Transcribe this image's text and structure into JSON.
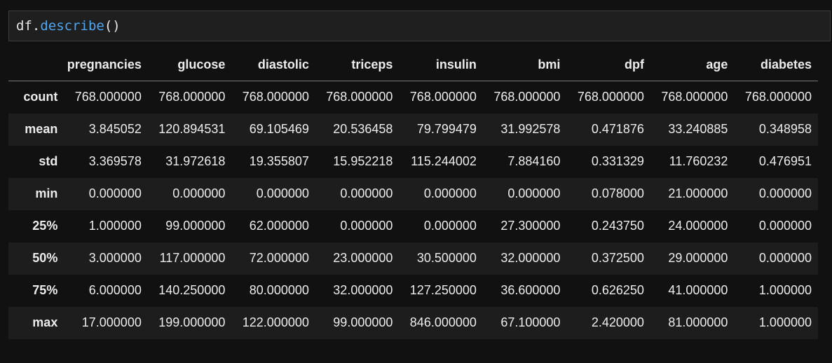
{
  "cell": {
    "code": {
      "object": "df",
      "dot": ".",
      "method": "describe",
      "parens": "()"
    }
  },
  "output": {
    "columns": [
      "pregnancies",
      "glucose",
      "diastolic",
      "triceps",
      "insulin",
      "bmi",
      "dpf",
      "age",
      "diabetes"
    ],
    "rows": [
      {
        "index": "count",
        "values": [
          "768.000000",
          "768.000000",
          "768.000000",
          "768.000000",
          "768.000000",
          "768.000000",
          "768.000000",
          "768.000000",
          "768.000000"
        ]
      },
      {
        "index": "mean",
        "values": [
          "3.845052",
          "120.894531",
          "69.105469",
          "20.536458",
          "79.799479",
          "31.992578",
          "0.471876",
          "33.240885",
          "0.348958"
        ]
      },
      {
        "index": "std",
        "values": [
          "3.369578",
          "31.972618",
          "19.355807",
          "15.952218",
          "115.244002",
          "7.884160",
          "0.331329",
          "11.760232",
          "0.476951"
        ]
      },
      {
        "index": "min",
        "values": [
          "0.000000",
          "0.000000",
          "0.000000",
          "0.000000",
          "0.000000",
          "0.000000",
          "0.078000",
          "21.000000",
          "0.000000"
        ]
      },
      {
        "index": "25%",
        "values": [
          "1.000000",
          "99.000000",
          "62.000000",
          "0.000000",
          "0.000000",
          "27.300000",
          "0.243750",
          "24.000000",
          "0.000000"
        ]
      },
      {
        "index": "50%",
        "values": [
          "3.000000",
          "117.000000",
          "72.000000",
          "23.000000",
          "30.500000",
          "32.000000",
          "0.372500",
          "29.000000",
          "0.000000"
        ]
      },
      {
        "index": "75%",
        "values": [
          "6.000000",
          "140.250000",
          "80.000000",
          "32.000000",
          "127.250000",
          "36.600000",
          "0.626250",
          "41.000000",
          "1.000000"
        ]
      },
      {
        "index": "max",
        "values": [
          "17.000000",
          "199.000000",
          "122.000000",
          "99.000000",
          "846.000000",
          "67.100000",
          "2.420000",
          "81.000000",
          "1.000000"
        ]
      }
    ]
  }
}
